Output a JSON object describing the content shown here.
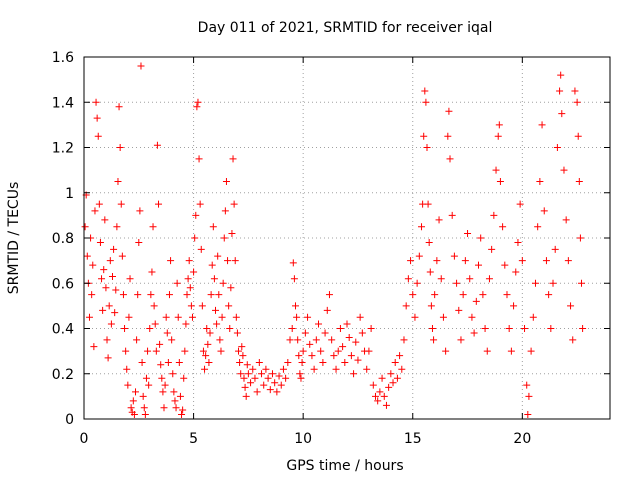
{
  "chart_data": {
    "type": "scatter",
    "title": "Day 011 of 2021, SRMTID for receiver iqal",
    "xlabel": "GPS time / hours",
    "ylabel": "SRMTID / TECUs",
    "xlim": [
      0,
      24
    ],
    "ylim": [
      0,
      1.6
    ],
    "xticks": [
      0,
      5,
      10,
      15,
      20
    ],
    "xtick_labels": [
      "0",
      "5",
      "10",
      "15",
      "20"
    ],
    "yticks": [
      0,
      0.2,
      0.4,
      0.6,
      0.8,
      1.0,
      1.2,
      1.4,
      1.6
    ],
    "ytick_labels": [
      "0",
      "0.2",
      "0.4",
      "0.6",
      "0.8",
      "1",
      "1.2",
      "1.4",
      "1.6"
    ],
    "grid": true,
    "marker": "plus",
    "color": "#ff0000",
    "series": [
      {
        "name": "SRMTID",
        "points": [
          [
            0.05,
            0.85
          ],
          [
            0.1,
            0.99
          ],
          [
            0.15,
            0.72
          ],
          [
            0.2,
            0.6
          ],
          [
            0.25,
            0.45
          ],
          [
            0.3,
            0.8
          ],
          [
            0.35,
            0.55
          ],
          [
            0.4,
            0.68
          ],
          [
            0.45,
            0.32
          ],
          [
            0.5,
            0.92
          ],
          [
            0.55,
            1.4
          ],
          [
            0.6,
            1.33
          ],
          [
            0.65,
            1.25
          ],
          [
            0.7,
            0.95
          ],
          [
            0.75,
            0.78
          ],
          [
            0.8,
            0.62
          ],
          [
            0.85,
            0.48
          ],
          [
            0.9,
            0.66
          ],
          [
            0.95,
            0.88
          ],
          [
            1.0,
            0.58
          ],
          [
            1.05,
            0.35
          ],
          [
            1.1,
            0.27
          ],
          [
            1.15,
            0.5
          ],
          [
            1.2,
            0.7
          ],
          [
            1.25,
            0.42
          ],
          [
            1.3,
            0.63
          ],
          [
            1.35,
            0.75
          ],
          [
            1.4,
            0.47
          ],
          [
            1.45,
            0.57
          ],
          [
            1.5,
            0.85
          ],
          [
            1.55,
            1.05
          ],
          [
            1.6,
            1.38
          ],
          [
            1.65,
            1.2
          ],
          [
            1.7,
            0.95
          ],
          [
            1.75,
            0.72
          ],
          [
            1.8,
            0.55
          ],
          [
            1.85,
            0.4
          ],
          [
            1.9,
            0.3
          ],
          [
            1.95,
            0.22
          ],
          [
            2.0,
            0.15
          ],
          [
            2.05,
            0.45
          ],
          [
            2.1,
            0.62
          ],
          [
            2.15,
            0.05
          ],
          [
            2.2,
            0.03
          ],
          [
            2.25,
            0.08
          ],
          [
            2.3,
            0.02
          ],
          [
            2.35,
            0.12
          ],
          [
            2.4,
            0.35
          ],
          [
            2.45,
            0.55
          ],
          [
            2.5,
            0.78
          ],
          [
            2.55,
            0.92
          ],
          [
            2.6,
            1.56
          ],
          [
            2.65,
            0.25
          ],
          [
            2.7,
            0.1
          ],
          [
            2.75,
            0.05
          ],
          [
            2.8,
            0.02
          ],
          [
            2.85,
            0.18
          ],
          [
            2.9,
            0.3
          ],
          [
            2.95,
            0.15
          ],
          [
            3.0,
            0.4
          ],
          [
            3.05,
            0.55
          ],
          [
            3.1,
            0.65
          ],
          [
            3.15,
            0.85
          ],
          [
            3.2,
            0.5
          ],
          [
            3.25,
            0.42
          ],
          [
            3.3,
            0.3
          ],
          [
            3.35,
            1.21
          ],
          [
            3.4,
            0.95
          ],
          [
            3.45,
            0.33
          ],
          [
            3.5,
            0.24
          ],
          [
            3.55,
            0.18
          ],
          [
            3.6,
            0.12
          ],
          [
            3.65,
            0.05
          ],
          [
            3.7,
            0.15
          ],
          [
            3.75,
            0.45
          ],
          [
            3.8,
            0.38
          ],
          [
            3.85,
            0.25
          ],
          [
            3.9,
            0.55
          ],
          [
            3.95,
            0.7
          ],
          [
            4.0,
            0.35
          ],
          [
            4.05,
            0.2
          ],
          [
            4.1,
            0.12
          ],
          [
            4.15,
            0.08
          ],
          [
            4.2,
            0.05
          ],
          [
            4.25,
            0.6
          ],
          [
            4.3,
            0.45
          ],
          [
            4.35,
            0.25
          ],
          [
            4.4,
            0.1
          ],
          [
            4.45,
            0.02
          ],
          [
            4.5,
            0.04
          ],
          [
            4.55,
            0.18
          ],
          [
            4.6,
            0.3
          ],
          [
            4.65,
            0.42
          ],
          [
            4.7,
            0.55
          ],
          [
            4.75,
            0.62
          ],
          [
            4.8,
            0.7
          ],
          [
            4.85,
            0.58
          ],
          [
            4.9,
            0.5
          ],
          [
            4.95,
            0.45
          ],
          [
            5.0,
            0.65
          ],
          [
            5.05,
            0.8
          ],
          [
            5.1,
            0.9
          ],
          [
            5.15,
            1.38
          ],
          [
            5.2,
            1.4
          ],
          [
            5.25,
            1.15
          ],
          [
            5.3,
            0.95
          ],
          [
            5.35,
            0.75
          ],
          [
            5.4,
            0.5
          ],
          [
            5.45,
            0.3
          ],
          [
            5.5,
            0.22
          ],
          [
            5.55,
            0.28
          ],
          [
            5.6,
            0.4
          ],
          [
            5.65,
            0.33
          ],
          [
            5.7,
            0.25
          ],
          [
            5.75,
            0.38
          ],
          [
            5.8,
            0.55
          ],
          [
            5.85,
            0.68
          ],
          [
            5.9,
            0.85
          ],
          [
            5.95,
            0.62
          ],
          [
            6.0,
            0.48
          ],
          [
            6.05,
            0.42
          ],
          [
            6.1,
            0.72
          ],
          [
            6.15,
            0.55
          ],
          [
            6.2,
            0.35
          ],
          [
            6.25,
            0.3
          ],
          [
            6.3,
            0.45
          ],
          [
            6.35,
            0.6
          ],
          [
            6.4,
            0.8
          ],
          [
            6.45,
            0.92
          ],
          [
            6.5,
            1.05
          ],
          [
            6.55,
            0.7
          ],
          [
            6.6,
            0.5
          ],
          [
            6.65,
            0.4
          ],
          [
            6.7,
            0.58
          ],
          [
            6.75,
            0.82
          ],
          [
            6.8,
            1.15
          ],
          [
            6.85,
            0.95
          ],
          [
            6.9,
            0.7
          ],
          [
            6.95,
            0.45
          ],
          [
            7.0,
            0.38
          ],
          [
            7.05,
            0.3
          ],
          [
            7.1,
            0.25
          ],
          [
            7.15,
            0.2
          ],
          [
            7.2,
            0.32
          ],
          [
            7.25,
            0.28
          ],
          [
            7.3,
            0.18
          ],
          [
            7.35,
            0.14
          ],
          [
            7.4,
            0.1
          ],
          [
            7.45,
            0.24
          ],
          [
            7.5,
            0.2
          ],
          [
            7.6,
            0.16
          ],
          [
            7.7,
            0.22
          ],
          [
            7.8,
            0.18
          ],
          [
            7.9,
            0.12
          ],
          [
            8.0,
            0.25
          ],
          [
            8.1,
            0.2
          ],
          [
            8.2,
            0.15
          ],
          [
            8.3,
            0.22
          ],
          [
            8.4,
            0.18
          ],
          [
            8.5,
            0.13
          ],
          [
            8.6,
            0.2
          ],
          [
            8.7,
            0.16
          ],
          [
            8.8,
            0.12
          ],
          [
            8.9,
            0.19
          ],
          [
            9.0,
            0.15
          ],
          [
            9.1,
            0.22
          ],
          [
            9.2,
            0.18
          ],
          [
            9.3,
            0.25
          ],
          [
            9.4,
            0.35
          ],
          [
            9.5,
            0.4
          ],
          [
            9.55,
            0.69
          ],
          [
            9.6,
            0.62
          ],
          [
            9.65,
            0.5
          ],
          [
            9.7,
            0.45
          ],
          [
            9.75,
            0.35
          ],
          [
            9.8,
            0.28
          ],
          [
            9.85,
            0.2
          ],
          [
            9.9,
            0.18
          ],
          [
            9.95,
            0.25
          ],
          [
            10.0,
            0.3
          ],
          [
            10.1,
            0.38
          ],
          [
            10.2,
            0.45
          ],
          [
            10.3,
            0.33
          ],
          [
            10.4,
            0.28
          ],
          [
            10.5,
            0.22
          ],
          [
            10.6,
            0.35
          ],
          [
            10.7,
            0.42
          ],
          [
            10.8,
            0.3
          ],
          [
            10.9,
            0.25
          ],
          [
            11.0,
            0.38
          ],
          [
            11.1,
            0.48
          ],
          [
            11.2,
            0.55
          ],
          [
            11.3,
            0.35
          ],
          [
            11.4,
            0.28
          ],
          [
            11.5,
            0.22
          ],
          [
            11.6,
            0.3
          ],
          [
            11.7,
            0.4
          ],
          [
            11.8,
            0.32
          ],
          [
            11.9,
            0.25
          ],
          [
            12.0,
            0.42
          ],
          [
            12.1,
            0.36
          ],
          [
            12.2,
            0.28
          ],
          [
            12.3,
            0.2
          ],
          [
            12.4,
            0.34
          ],
          [
            12.5,
            0.26
          ],
          [
            12.6,
            0.45
          ],
          [
            12.7,
            0.38
          ],
          [
            12.8,
            0.3
          ],
          [
            12.9,
            0.22
          ],
          [
            13.0,
            0.3
          ],
          [
            13.1,
            0.4
          ],
          [
            13.2,
            0.15
          ],
          [
            13.3,
            0.1
          ],
          [
            13.4,
            0.08
          ],
          [
            13.5,
            0.12
          ],
          [
            13.6,
            0.18
          ],
          [
            13.7,
            0.1
          ],
          [
            13.8,
            0.06
          ],
          [
            13.9,
            0.14
          ],
          [
            14.0,
            0.2
          ],
          [
            14.1,
            0.16
          ],
          [
            14.2,
            0.25
          ],
          [
            14.3,
            0.18
          ],
          [
            14.4,
            0.28
          ],
          [
            14.5,
            0.22
          ],
          [
            14.6,
            0.35
          ],
          [
            14.7,
            0.5
          ],
          [
            14.8,
            0.62
          ],
          [
            14.9,
            0.7
          ],
          [
            15.0,
            0.55
          ],
          [
            15.1,
            0.45
          ],
          [
            15.2,
            0.6
          ],
          [
            15.3,
            0.72
          ],
          [
            15.4,
            0.85
          ],
          [
            15.45,
            0.95
          ],
          [
            15.5,
            1.25
          ],
          [
            15.55,
            1.45
          ],
          [
            15.6,
            1.4
          ],
          [
            15.65,
            1.2
          ],
          [
            15.7,
            0.95
          ],
          [
            15.75,
            0.78
          ],
          [
            15.8,
            0.65
          ],
          [
            15.85,
            0.5
          ],
          [
            15.9,
            0.4
          ],
          [
            15.95,
            0.35
          ],
          [
            16.0,
            0.55
          ],
          [
            16.1,
            0.7
          ],
          [
            16.2,
            0.88
          ],
          [
            16.3,
            0.62
          ],
          [
            16.4,
            0.45
          ],
          [
            16.5,
            0.3
          ],
          [
            16.6,
            1.25
          ],
          [
            16.65,
            1.36
          ],
          [
            16.7,
            1.15
          ],
          [
            16.8,
            0.9
          ],
          [
            16.9,
            0.72
          ],
          [
            17.0,
            0.6
          ],
          [
            17.1,
            0.48
          ],
          [
            17.2,
            0.35
          ],
          [
            17.3,
            0.55
          ],
          [
            17.4,
            0.7
          ],
          [
            17.5,
            0.82
          ],
          [
            17.6,
            0.62
          ],
          [
            17.7,
            0.45
          ],
          [
            17.8,
            0.38
          ],
          [
            17.9,
            0.52
          ],
          [
            18.0,
            0.68
          ],
          [
            18.1,
            0.8
          ],
          [
            18.2,
            0.55
          ],
          [
            18.3,
            0.4
          ],
          [
            18.4,
            0.3
          ],
          [
            18.5,
            0.62
          ],
          [
            18.6,
            0.75
          ],
          [
            18.7,
            0.9
          ],
          [
            18.8,
            1.1
          ],
          [
            18.9,
            1.25
          ],
          [
            18.95,
            1.3
          ],
          [
            19.0,
            1.05
          ],
          [
            19.1,
            0.85
          ],
          [
            19.2,
            0.68
          ],
          [
            19.3,
            0.55
          ],
          [
            19.4,
            0.4
          ],
          [
            19.5,
            0.3
          ],
          [
            19.6,
            0.5
          ],
          [
            19.7,
            0.65
          ],
          [
            19.8,
            0.78
          ],
          [
            19.9,
            0.95
          ],
          [
            20.0,
            0.7
          ],
          [
            20.1,
            0.4
          ],
          [
            20.2,
            0.15
          ],
          [
            20.25,
            0.02
          ],
          [
            20.3,
            0.1
          ],
          [
            20.4,
            0.3
          ],
          [
            20.5,
            0.45
          ],
          [
            20.6,
            0.6
          ],
          [
            20.7,
            0.85
          ],
          [
            20.8,
            1.05
          ],
          [
            20.9,
            1.3
          ],
          [
            21.0,
            0.92
          ],
          [
            21.1,
            0.7
          ],
          [
            21.2,
            0.55
          ],
          [
            21.3,
            0.4
          ],
          [
            21.4,
            0.6
          ],
          [
            21.5,
            0.75
          ],
          [
            21.6,
            1.2
          ],
          [
            21.7,
            1.45
          ],
          [
            21.75,
            1.52
          ],
          [
            21.8,
            1.35
          ],
          [
            21.9,
            1.1
          ],
          [
            22.0,
            0.88
          ],
          [
            22.1,
            0.7
          ],
          [
            22.2,
            0.5
          ],
          [
            22.3,
            0.35
          ],
          [
            22.4,
            1.45
          ],
          [
            22.5,
            1.4
          ],
          [
            22.55,
            1.25
          ],
          [
            22.6,
            1.05
          ],
          [
            22.65,
            0.8
          ],
          [
            22.7,
            0.6
          ],
          [
            22.75,
            0.4
          ]
        ]
      }
    ]
  }
}
